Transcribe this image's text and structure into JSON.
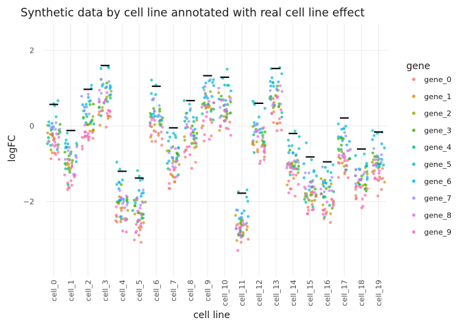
{
  "chart_data": {
    "type": "scatter",
    "title": "Synthetic data by cell line annotated with real cell line effect",
    "xlabel": "cell line",
    "ylabel": "logFC",
    "ylim": [
      -4,
      2.7
    ],
    "yticks": [
      -2,
      0,
      2
    ],
    "grid": true,
    "legend": {
      "title": "gene",
      "position": "right"
    },
    "categories": [
      "cell_0",
      "cell_1",
      "cell_2",
      "cell_3",
      "cell_4",
      "cell_5",
      "cell_6",
      "cell_7",
      "cell_8",
      "cell_9",
      "cell_10",
      "cell_11",
      "cell_12",
      "cell_13",
      "cell_14",
      "cell_15",
      "cell_16",
      "cell_17",
      "cell_18",
      "cell_19"
    ],
    "cell_line_effect": [
      0.57,
      -0.12,
      0.97,
      1.6,
      -1.2,
      -1.38,
      1.05,
      -0.05,
      0.67,
      1.33,
      1.29,
      -1.78,
      0.6,
      1.52,
      -0.2,
      -0.82,
      -0.95,
      0.21,
      -0.61,
      -0.16
    ],
    "cell_spread": [
      0.6,
      0.5,
      0.6,
      0.6,
      0.55,
      0.5,
      0.55,
      0.5,
      0.55,
      0.6,
      0.6,
      0.45,
      0.55,
      0.55,
      0.5,
      0.5,
      0.5,
      0.5,
      0.5,
      0.5
    ],
    "series": [
      {
        "name": "gene_0",
        "color": "#f8766d",
        "offset": -0.7
      },
      {
        "name": "gene_1",
        "color": "#d89000",
        "offset": -0.4
      },
      {
        "name": "gene_2",
        "color": "#a3a500",
        "offset": -0.1
      },
      {
        "name": "gene_3",
        "color": "#39b600",
        "offset": 0.0
      },
      {
        "name": "gene_4",
        "color": "#00bf7d",
        "offset": -0.3
      },
      {
        "name": "gene_5",
        "color": "#00bfc4",
        "offset": 0.7
      },
      {
        "name": "gene_6",
        "color": "#00b0f6",
        "offset": 0.2
      },
      {
        "name": "gene_7",
        "color": "#9590ff",
        "offset": 0.1
      },
      {
        "name": "gene_8",
        "color": "#e76bf3",
        "offset": -0.2
      },
      {
        "name": "gene_9",
        "color": "#ff62bc",
        "offset": -0.6
      }
    ]
  }
}
